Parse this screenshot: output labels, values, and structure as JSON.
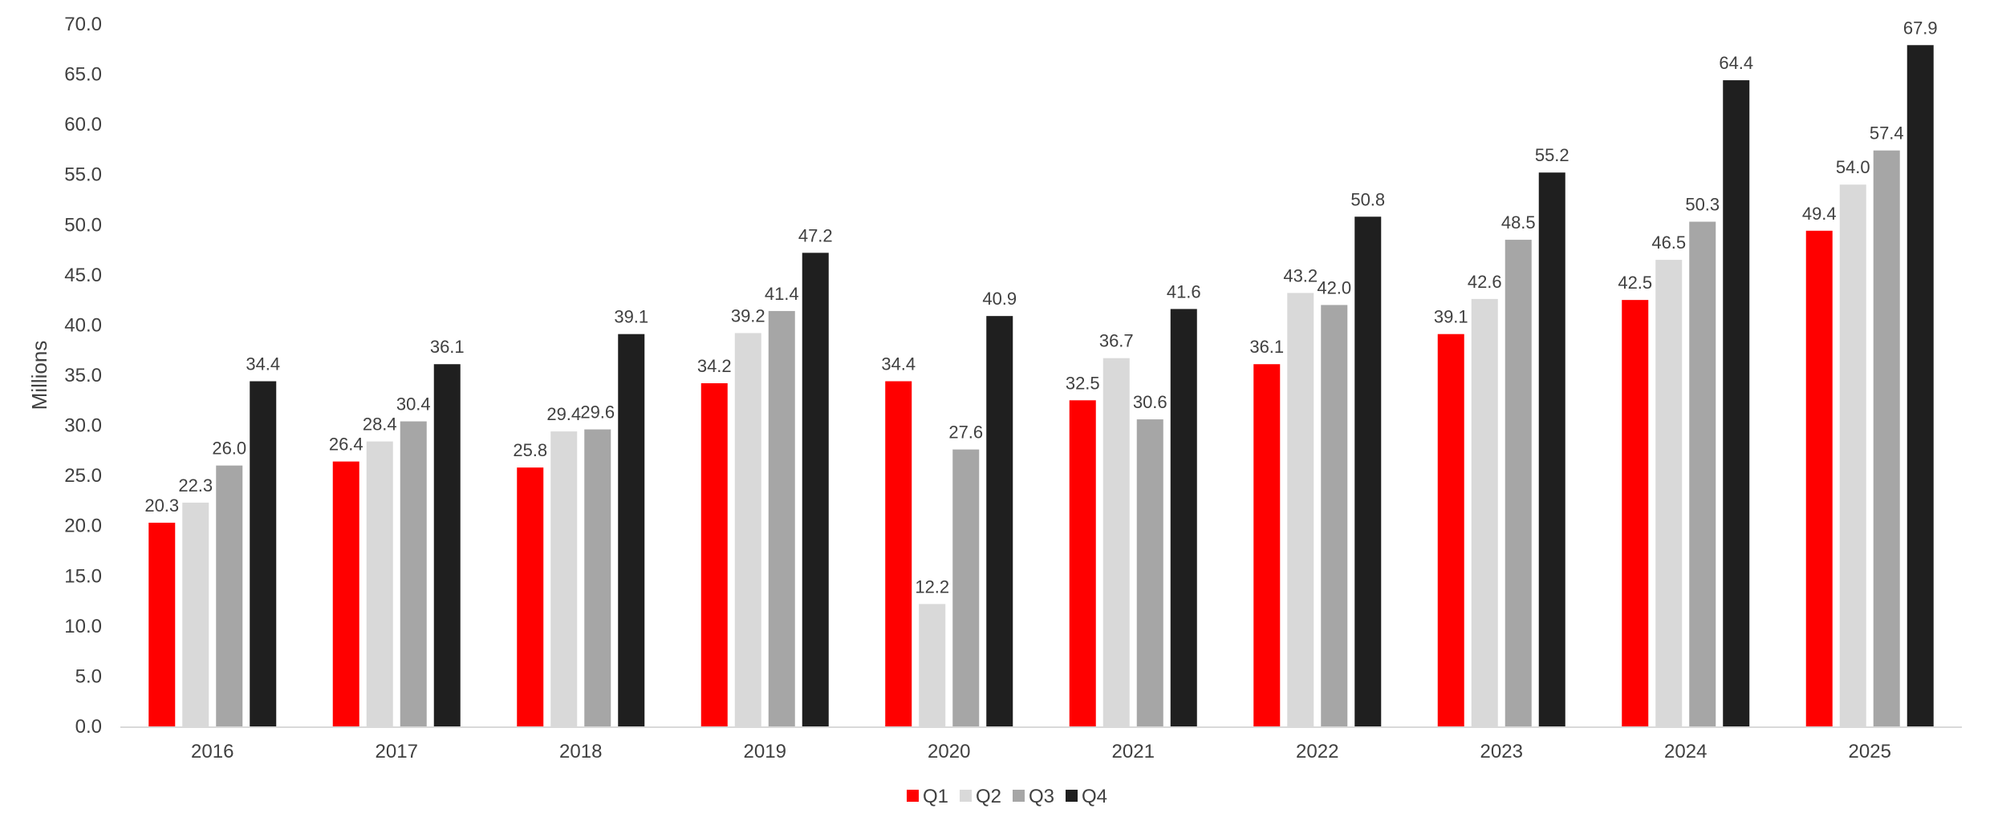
{
  "chart_data": {
    "type": "bar",
    "title": "",
    "xlabel": "",
    "ylabel": "Millions",
    "ylim": [
      0,
      70
    ],
    "ytick_step": 5,
    "ytick_decimals": 1,
    "grid": false,
    "legend_position": "bottom-center",
    "categories": [
      "2016",
      "2017",
      "2018",
      "2019",
      "2020",
      "2021",
      "2022",
      "2023",
      "2024",
      "2025"
    ],
    "series": [
      {
        "name": "Q1",
        "color": "#ff0000",
        "values": [
          20.3,
          26.4,
          25.8,
          34.2,
          34.4,
          32.5,
          36.1,
          39.1,
          42.5,
          49.4
        ]
      },
      {
        "name": "Q2",
        "color": "#d9d9d9",
        "values": [
          22.3,
          28.4,
          29.4,
          39.2,
          12.2,
          36.7,
          43.2,
          42.6,
          46.5,
          54.0
        ]
      },
      {
        "name": "Q3",
        "color": "#a6a6a6",
        "values": [
          26.0,
          30.4,
          29.6,
          41.4,
          27.6,
          30.6,
          42.0,
          48.5,
          50.3,
          57.4
        ]
      },
      {
        "name": "Q4",
        "color": "#1f1f1f",
        "values": [
          34.4,
          36.1,
          39.1,
          47.2,
          40.9,
          41.6,
          50.8,
          55.2,
          64.4,
          67.9
        ]
      }
    ]
  }
}
